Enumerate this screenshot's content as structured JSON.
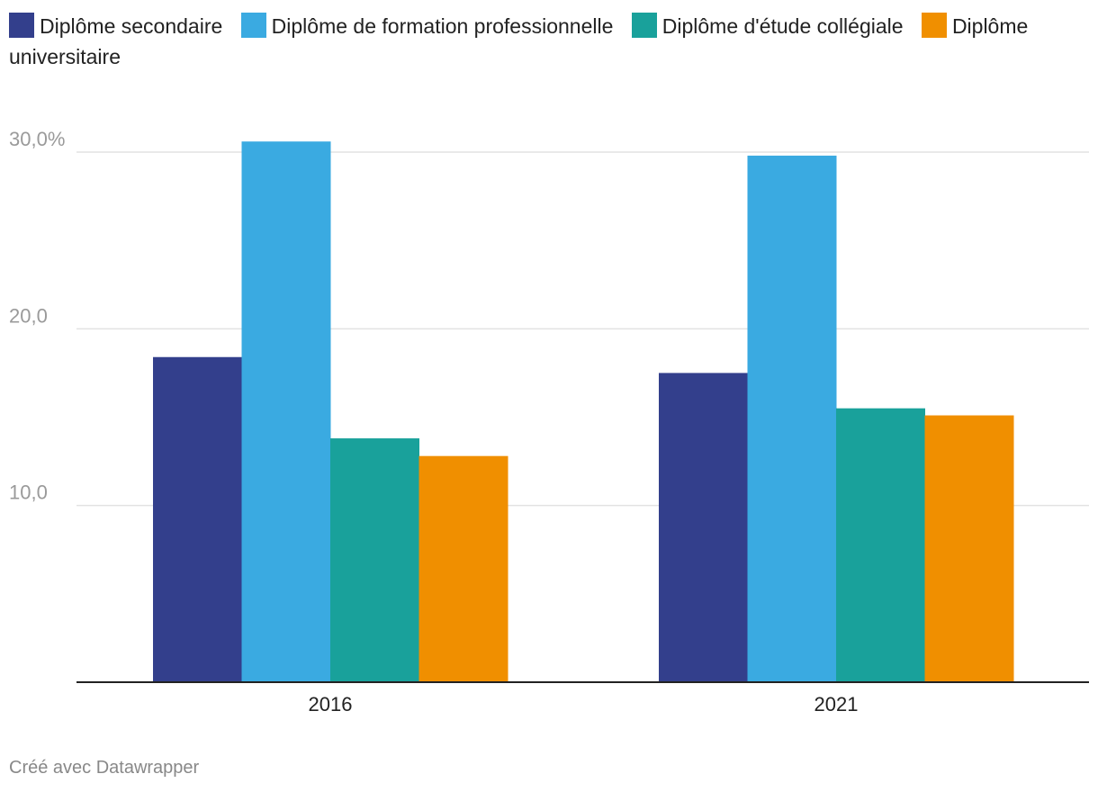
{
  "chart_data": {
    "type": "bar",
    "categories": [
      "2016",
      "2021"
    ],
    "series": [
      {
        "name": "Diplôme secondaire",
        "color": "#333f8c",
        "values": [
          18.4,
          17.5
        ]
      },
      {
        "name": "Diplôme de formation professionnelle",
        "color": "#3aaae1",
        "values": [
          30.6,
          29.8
        ]
      },
      {
        "name": "Diplôme d'étude collégiale",
        "color": "#19a19b",
        "values": [
          13.8,
          15.5
        ]
      },
      {
        "name": "Diplôme universitaire",
        "color": "#f08f00",
        "values": [
          12.8,
          15.1
        ]
      }
    ],
    "title": "",
    "xlabel": "",
    "ylabel": "",
    "ylim": [
      0,
      30
    ],
    "yticks": [
      {
        "value": 10,
        "label": "10,0"
      },
      {
        "value": 20,
        "label": "20,0"
      },
      {
        "value": 30,
        "label": "30,0%"
      }
    ],
    "grid": true,
    "legend_position": "top"
  },
  "footer": {
    "credit": "Créé avec Datawrapper"
  }
}
